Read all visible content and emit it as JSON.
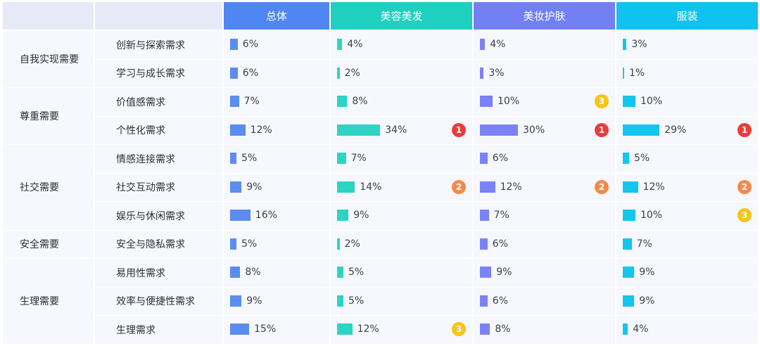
{
  "header": {
    "columns": [
      "总体",
      "美容美发",
      "美妆护肤",
      "服装"
    ]
  },
  "colors": {
    "series": [
      "#5b8cf0",
      "#2ed3c4",
      "#7b82f5",
      "#12c6ee"
    ],
    "header_bg": [
      "#4f86f2",
      "#1fcfc0",
      "#7280f3",
      "#10c2f0"
    ],
    "rank": {
      "1": "#ea3c3c",
      "2": "#f5894a",
      "3": "#f7c419"
    }
  },
  "chart_data": {
    "type": "table",
    "columns": [
      "总体",
      "美容美发",
      "美妆护肤",
      "服装"
    ],
    "groups": [
      {
        "category": "自我实现需要",
        "rows": [
          {
            "label": "创新与探索需求",
            "values": [
              6,
              4,
              4,
              3
            ],
            "ranks": [
              null,
              null,
              null,
              null
            ]
          },
          {
            "label": "学习与成长需求",
            "values": [
              6,
              2,
              3,
              1
            ],
            "ranks": [
              null,
              null,
              null,
              null
            ]
          }
        ]
      },
      {
        "category": "尊重需要",
        "rows": [
          {
            "label": "价值感需求",
            "values": [
              7,
              8,
              10,
              10
            ],
            "ranks": [
              null,
              null,
              3,
              null
            ]
          },
          {
            "label": "个性化需求",
            "values": [
              12,
              34,
              30,
              29
            ],
            "ranks": [
              null,
              1,
              1,
              1
            ]
          }
        ]
      },
      {
        "category": "社交需要",
        "rows": [
          {
            "label": "情感连接需求",
            "values": [
              5,
              7,
              6,
              5
            ],
            "ranks": [
              null,
              null,
              null,
              null
            ]
          },
          {
            "label": "社交互动需求",
            "values": [
              9,
              14,
              12,
              12
            ],
            "ranks": [
              null,
              2,
              2,
              2
            ]
          },
          {
            "label": "娱乐与休闲需求",
            "values": [
              16,
              9,
              7,
              10
            ],
            "ranks": [
              null,
              null,
              null,
              3
            ]
          }
        ]
      },
      {
        "category": "安全需要",
        "rows": [
          {
            "label": "安全与隐私需求",
            "values": [
              5,
              2,
              6,
              7
            ],
            "ranks": [
              null,
              null,
              null,
              null
            ]
          }
        ]
      },
      {
        "category": "生理需要",
        "rows": [
          {
            "label": "易用性需求",
            "values": [
              8,
              5,
              9,
              9
            ],
            "ranks": [
              null,
              null,
              null,
              null
            ]
          },
          {
            "label": "效率与便捷性需求",
            "values": [
              9,
              5,
              6,
              9
            ],
            "ranks": [
              null,
              null,
              null,
              null
            ]
          },
          {
            "label": "生理需求",
            "values": [
              15,
              12,
              8,
              4
            ],
            "ranks": [
              null,
              3,
              null,
              null
            ]
          }
        ]
      }
    ],
    "unit": "%"
  }
}
